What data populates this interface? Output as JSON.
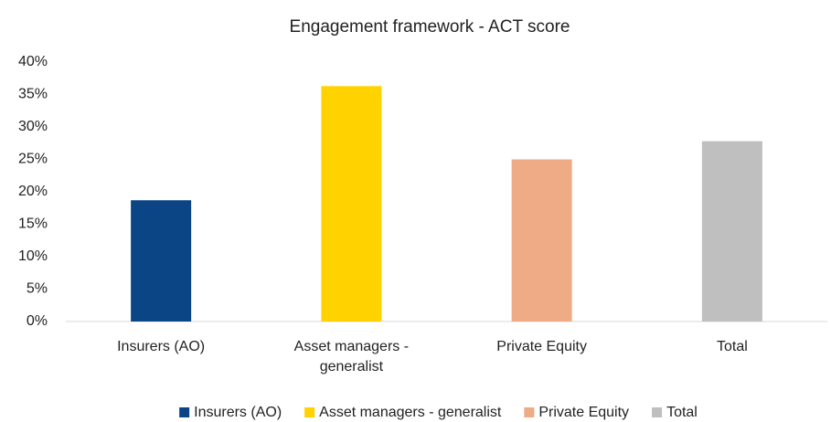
{
  "chart_data": {
    "type": "bar",
    "title": "Engagement framework - ACT score",
    "categories": [
      "Insurers (AO)",
      "Asset managers - generalist",
      "Private Equity",
      "Total"
    ],
    "values": [
      18.7,
      36.3,
      25.0,
      27.8
    ],
    "colors": [
      "#0b4586",
      "#ffd200",
      "#efab85",
      "#bfbfbf"
    ],
    "ylim": [
      0,
      40
    ],
    "yticks": [
      {
        "value": 0,
        "label": "0%"
      },
      {
        "value": 5,
        "label": "5%"
      },
      {
        "value": 10,
        "label": "10%"
      },
      {
        "value": 15,
        "label": "15%"
      },
      {
        "value": 20,
        "label": "20%"
      },
      {
        "value": 25,
        "label": "25%"
      },
      {
        "value": 30,
        "label": "30%"
      },
      {
        "value": 35,
        "label": "35%"
      },
      {
        "value": 40,
        "label": "40%"
      }
    ],
    "grid": false,
    "legend": "bottom"
  }
}
